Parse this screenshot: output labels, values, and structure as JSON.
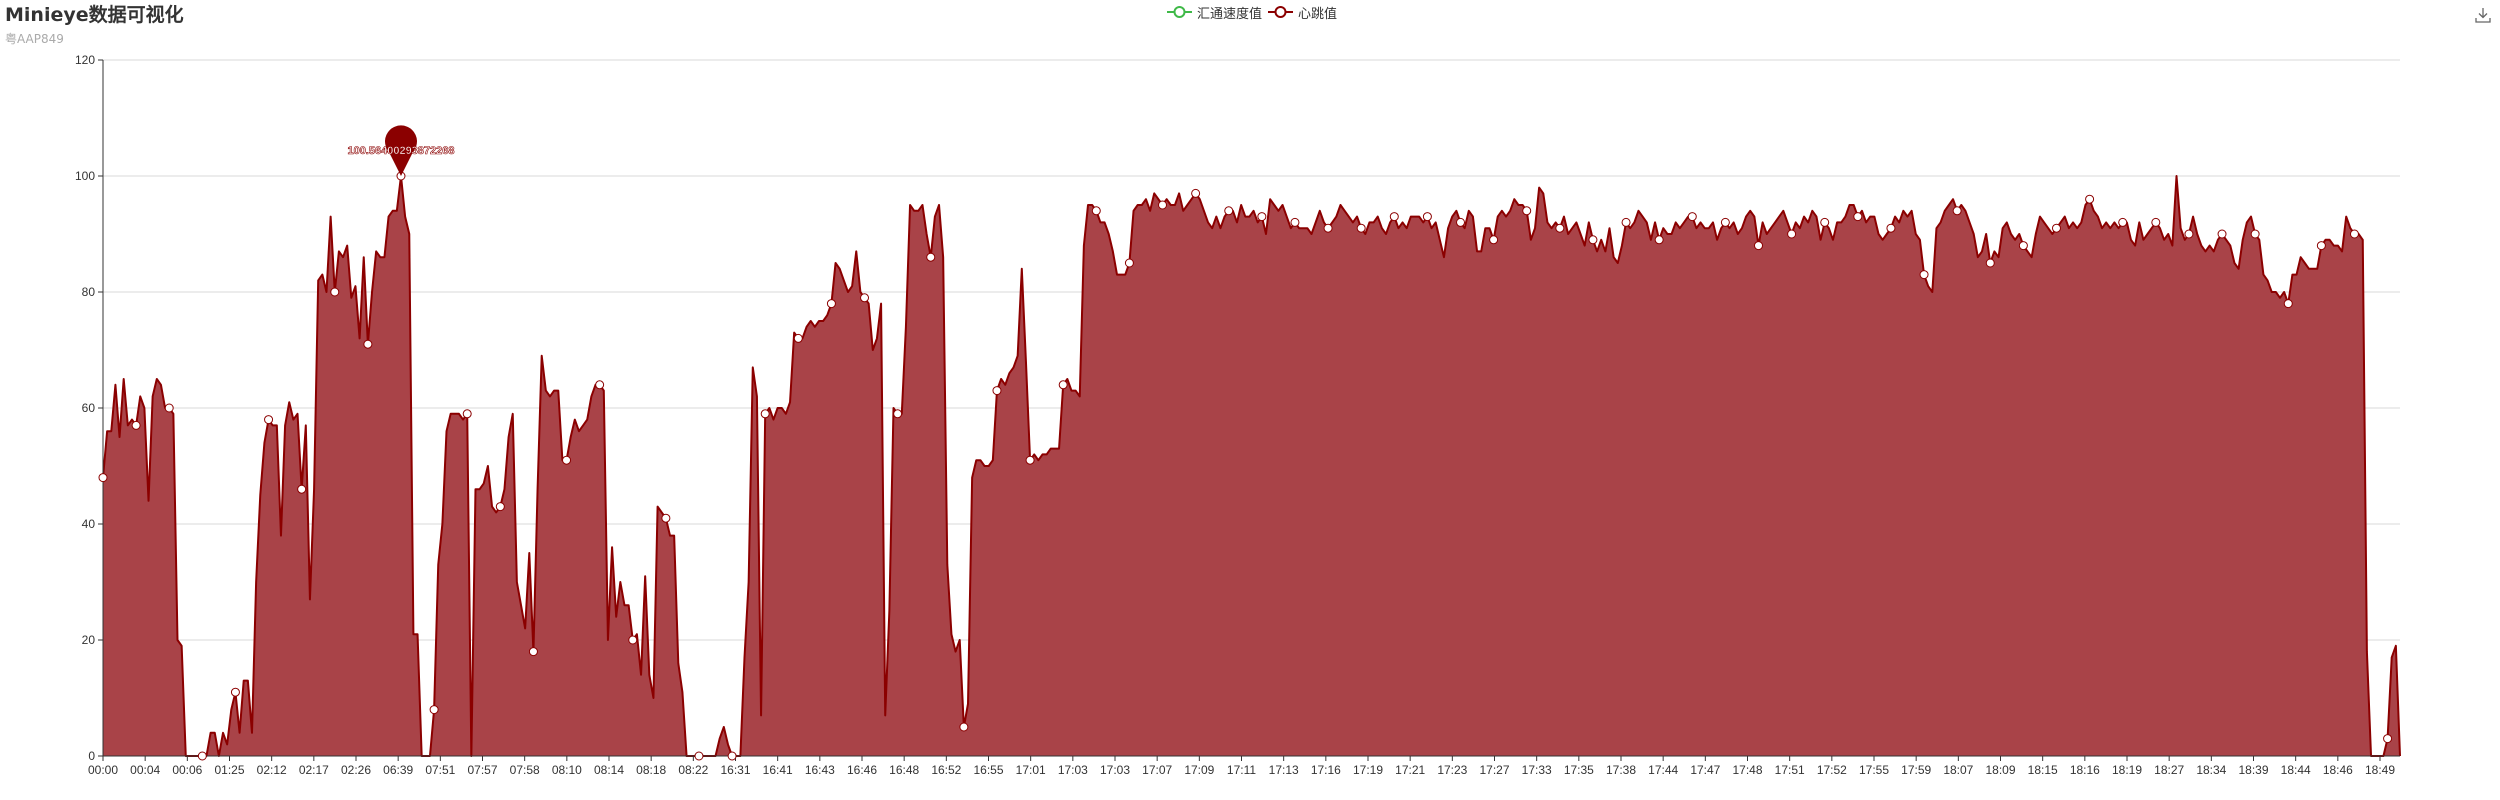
{
  "header": {
    "title": "Minieye数据可视化",
    "subtitle": "粤AAP849"
  },
  "legend": {
    "items": [
      {
        "label": "汇通速度值",
        "color": "#3fb948"
      },
      {
        "label": "心跳值",
        "color": "#8b0000"
      }
    ]
  },
  "toolbox": {
    "icon": "download-icon"
  },
  "chart_data": {
    "type": "area",
    "title": "Minieye数据可视化",
    "subtitle": "粤AAP849",
    "xlabel": "",
    "ylabel": "",
    "ylim": [
      0,
      120
    ],
    "y_ticks": [
      0,
      20,
      40,
      60,
      80,
      100,
      120
    ],
    "x_tick_labels": [
      "00:00",
      "00:04",
      "00:06",
      "01:25",
      "02:12",
      "02:17",
      "02:26",
      "06:39",
      "07:51",
      "07:57",
      "07:58",
      "08:10",
      "08:14",
      "08:18",
      "08:22",
      "16:31",
      "16:41",
      "16:43",
      "16:46",
      "16:48",
      "16:52",
      "16:55",
      "17:01",
      "17:03",
      "17:03",
      "17:07",
      "17:09",
      "17:11",
      "17:13",
      "17:16",
      "17:19",
      "17:21",
      "17:23",
      "17:27",
      "17:33",
      "17:35",
      "17:38",
      "17:44",
      "17:47",
      "17:48",
      "17:51",
      "17:52",
      "17:55",
      "17:59",
      "18:07",
      "18:09",
      "18:15",
      "18:16",
      "18:19",
      "18:27",
      "18:34",
      "18:39",
      "18:44",
      "18:46",
      "18:49"
    ],
    "grid": true,
    "legend_position": "top-center",
    "max_marker": {
      "label": "100.56400293872268",
      "value": 100.56
    },
    "series": [
      {
        "name": "汇通速度值",
        "color": "#3fb948",
        "values": []
      },
      {
        "name": "心跳值",
        "color": "#8b0000",
        "fill": "#a94348",
        "values": [
          48,
          56,
          56,
          64,
          55,
          65,
          57,
          58,
          57,
          62,
          60,
          44,
          62,
          65,
          64,
          60,
          60,
          59,
          20,
          19,
          0,
          0,
          0,
          0,
          0,
          0,
          4,
          4,
          0,
          4,
          2,
          8,
          11,
          4,
          13,
          13,
          4,
          30,
          45,
          54,
          58,
          57,
          57,
          38,
          57,
          61,
          58,
          59,
          46,
          57,
          27,
          46,
          82,
          83,
          80,
          93,
          80,
          87,
          86,
          88,
          79,
          81,
          72,
          86,
          71,
          80,
          87,
          86,
          86,
          93,
          94,
          94,
          100,
          93,
          90,
          21,
          21,
          0,
          0,
          0,
          8,
          33,
          40,
          56,
          59,
          59,
          59,
          58,
          59,
          0,
          46,
          46,
          47,
          50,
          43,
          42,
          43,
          46,
          55,
          59,
          30,
          26,
          22,
          35,
          18,
          46,
          69,
          63,
          62,
          63,
          63,
          51,
          51,
          55,
          58,
          56,
          57,
          58,
          62,
          64,
          64,
          63,
          20,
          36,
          24,
          30,
          26,
          26,
          20,
          21,
          14,
          31,
          14,
          10,
          43,
          42,
          41,
          38,
          38,
          16,
          11,
          0,
          0,
          0,
          0,
          0,
          0,
          0,
          0,
          3,
          5,
          2,
          0,
          0,
          0,
          17,
          30,
          67,
          62,
          7,
          59,
          60,
          58,
          60,
          60,
          59,
          61,
          73,
          72,
          72,
          74,
          75,
          74,
          75,
          75,
          76,
          78,
          85,
          84,
          82,
          80,
          81,
          87,
          80,
          79,
          78,
          70,
          72,
          78,
          7,
          25,
          60,
          59,
          59,
          74,
          95,
          94,
          94,
          95,
          90,
          86,
          93,
          95,
          86,
          33,
          21,
          18,
          20,
          5,
          9,
          48,
          51,
          51,
          50,
          50,
          51,
          63,
          65,
          64,
          66,
          67,
          69,
          84,
          68,
          51,
          52,
          51,
          52,
          52,
          53,
          53,
          53,
          64,
          65,
          63,
          63,
          62,
          88,
          95,
          95,
          94,
          92,
          92,
          90,
          87,
          83,
          83,
          83,
          85,
          94,
          95,
          95,
          96,
          94,
          97,
          96,
          95,
          96,
          95,
          95,
          97,
          94,
          95,
          96,
          97,
          96,
          94,
          92,
          91,
          93,
          91,
          93,
          94,
          94,
          92,
          95,
          93,
          93,
          94,
          92,
          93,
          90,
          96,
          95,
          94,
          95,
          93,
          91,
          92,
          91,
          91,
          91,
          90,
          92,
          94,
          92,
          91,
          92,
          93,
          95,
          94,
          93,
          92,
          93,
          91,
          90,
          92,
          92,
          93,
          91,
          90,
          92,
          93,
          91,
          92,
          91,
          93,
          93,
          93,
          92,
          93,
          91,
          92,
          89,
          86,
          91,
          93,
          94,
          92,
          91,
          94,
          93,
          87,
          87,
          91,
          91,
          89,
          93,
          94,
          93,
          94,
          96,
          95,
          95,
          94,
          89,
          91,
          98,
          97,
          92,
          91,
          92,
          91,
          93,
          90,
          91,
          92,
          90,
          88,
          92,
          89,
          87,
          89,
          87,
          91,
          86,
          85,
          88,
          92,
          91,
          92,
          94,
          93,
          92,
          89,
          92,
          89,
          91,
          90,
          90,
          92,
          91,
          92,
          93,
          93,
          91,
          92,
          91,
          91,
          92,
          89,
          91,
          92,
          91,
          92,
          90,
          91,
          93,
          94,
          93,
          88,
          92,
          90,
          91,
          92,
          93,
          94,
          92,
          90,
          92,
          91,
          93,
          92,
          94,
          93,
          89,
          92,
          91,
          89,
          92,
          92,
          93,
          95,
          95,
          93,
          94,
          92,
          93,
          93,
          90,
          89,
          90,
          91,
          93,
          92,
          94,
          93,
          94,
          90,
          89,
          83,
          81,
          80,
          91,
          92,
          94,
          95,
          96,
          94,
          95,
          94,
          92,
          90,
          86,
          87,
          90,
          85,
          87,
          86,
          91,
          92,
          90,
          89,
          90,
          88,
          87,
          86,
          90,
          93,
          92,
          91,
          90,
          91,
          92,
          93,
          91,
          92,
          91,
          92,
          95,
          96,
          94,
          93,
          91,
          92,
          91,
          92,
          91,
          92,
          92,
          89,
          88,
          92,
          89,
          90,
          91,
          92,
          91,
          89,
          90,
          88,
          100,
          91,
          89,
          90,
          93,
          90,
          88,
          87,
          88,
          87,
          89,
          90,
          89,
          88,
          85,
          84,
          89,
          92,
          93,
          90,
          89,
          83,
          82,
          80,
          80,
          79,
          80,
          78,
          83,
          83,
          86,
          85,
          84,
          84,
          84,
          88,
          89,
          89,
          88,
          88,
          87,
          93,
          91,
          90,
          90,
          89,
          18,
          0,
          0,
          0,
          0,
          3,
          17,
          19,
          0
        ]
      }
    ]
  }
}
